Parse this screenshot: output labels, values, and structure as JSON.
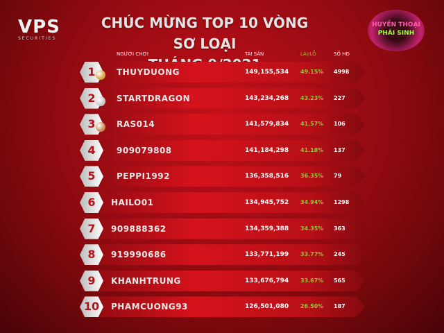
{
  "brand": {
    "name": "VPS",
    "tagline": "SECURITIES"
  },
  "title": {
    "line1": "CHÚC MỪNG TOP 10 VÒNG SƠ LOẠI",
    "line2": "THÁNG 9/2021"
  },
  "badge": {
    "line1": "HUYỀN THOẠI",
    "line2": "PHÁI SINH"
  },
  "headers": {
    "player": "NGƯỜI CHƠI",
    "assets": "TÀI SẢN",
    "pnl": "LÃI/LỖ",
    "contracts": "SỐ HĐ"
  },
  "colors": {
    "accent": "#c3101a",
    "pnl": "#9ac13a",
    "gold": "#d9a441",
    "silver": "#c8c8c8",
    "bronze": "#c98a55"
  },
  "rows": [
    {
      "rank": "1",
      "name": "THUYDUONG",
      "assets": "149,155,534",
      "pnl": "49.15%",
      "contracts": "4998",
      "medal": "gold"
    },
    {
      "rank": "2",
      "name": "STARTDRAGON",
      "assets": "143,234,268",
      "pnl": "43.23%",
      "contracts": "227",
      "medal": "silver"
    },
    {
      "rank": "3",
      "name": "RAS014",
      "assets": "141,579,834",
      "pnl": "41.57%",
      "contracts": "106",
      "medal": "bronze"
    },
    {
      "rank": "4",
      "name": "909079808",
      "assets": "141,184,298",
      "pnl": "41.18%",
      "contracts": "137"
    },
    {
      "rank": "5",
      "name": "PEPPI1992",
      "assets": "136,358,516",
      "pnl": "36.35%",
      "contracts": "79"
    },
    {
      "rank": "6",
      "name": "HAILO01",
      "assets": "134,945,752",
      "pnl": "34.94%",
      "contracts": "1298"
    },
    {
      "rank": "7",
      "name": "909888362",
      "assets": "134,359,388",
      "pnl": "34.35%",
      "contracts": "363"
    },
    {
      "rank": "8",
      "name": "919990686",
      "assets": "133,771,199",
      "pnl": "33.77%",
      "contracts": "245"
    },
    {
      "rank": "9",
      "name": "KHANHTRUNG",
      "assets": "133,676,794",
      "pnl": "33.67%",
      "contracts": "565"
    },
    {
      "rank": "10",
      "name": "PHAMCUONG93",
      "assets": "126,501,080",
      "pnl": "26.50%",
      "contracts": "187"
    }
  ]
}
